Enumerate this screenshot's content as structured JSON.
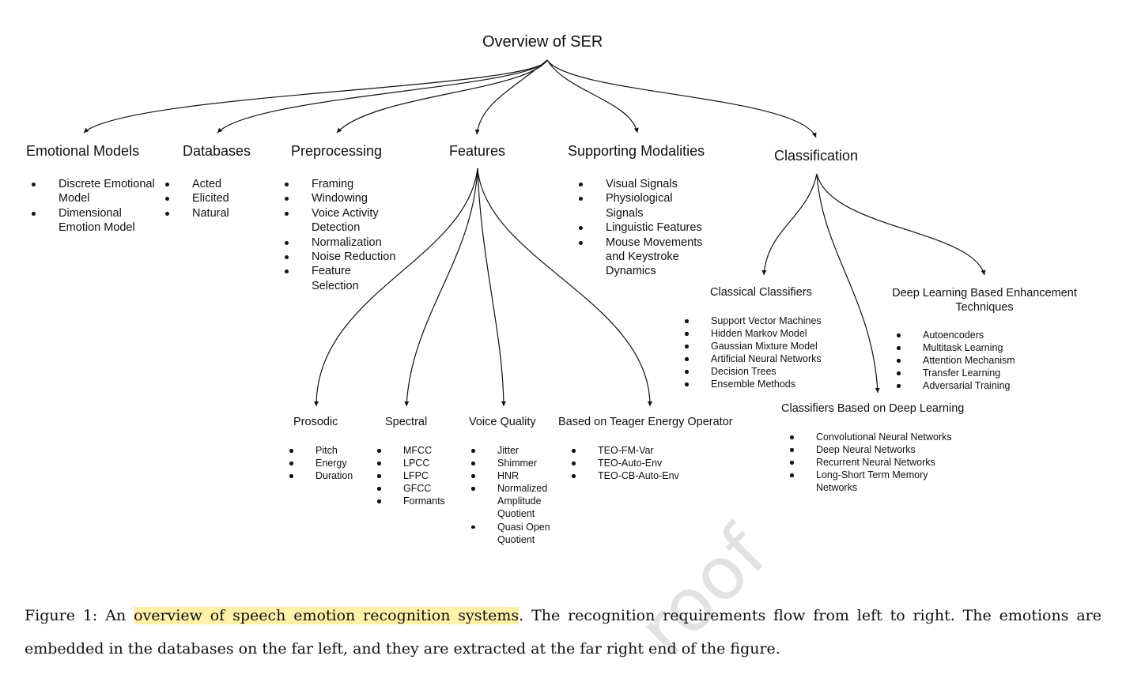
{
  "diagram": {
    "title": "Overview of SER",
    "sections": [
      {
        "title": "Emotional Models",
        "items": [
          "Discrete Emotional Model",
          "Dimensional Emotion Model"
        ]
      },
      {
        "title": "Databases",
        "items": [
          "Acted",
          "Elicited",
          "Natural"
        ]
      },
      {
        "title": "Preprocessing",
        "items": [
          "Framing",
          "Windowing",
          "Voice Activity Detection",
          "Normalization",
          "Noise Reduction",
          "Feature Selection"
        ]
      },
      {
        "title": "Features"
      },
      {
        "title": "Supporting Modalities",
        "items": [
          "Visual Signals",
          "Physiological Signals",
          "Linguistic Features",
          "Mouse Movements and Keystroke Dynamics"
        ]
      },
      {
        "title": "Classification"
      }
    ],
    "feature_groups": [
      {
        "title": "Prosodic",
        "items": [
          "Pitch",
          "Energy",
          "Duration"
        ]
      },
      {
        "title": "Spectral",
        "items": [
          "MFCC",
          "LPCC",
          "LFPC",
          "GFCC",
          "Formants"
        ]
      },
      {
        "title": "Voice Quality",
        "items": [
          "Jitter",
          "Shimmer",
          "HNR",
          "Normalized Amplitude Quotient",
          "Quasi Open Quotient"
        ]
      },
      {
        "title": "Based on Teager Energy Operator",
        "items": [
          "TEO-FM-Var",
          "TEO-Auto-Env",
          "TEO-CB-Auto-Env"
        ]
      }
    ],
    "classifier_groups": [
      {
        "title": "Classical Classifiers",
        "items": [
          "Support Vector Machines",
          "Hidden Markov Model",
          "Gaussian Mixture Model",
          "Artificial Neural Networks",
          "Decision Trees",
          "Ensemble Methods"
        ]
      },
      {
        "title": "Deep Learning Based Enhancement Techniques",
        "items": [
          "Autoencoders",
          "Multitask Learning",
          "Attention Mechanism",
          "Transfer Learning",
          "Adversarial Training"
        ]
      },
      {
        "title": "Classifiers Based on Deep Learning",
        "items": [
          "Convolutional Neural Networks",
          "Deep Neural Networks",
          "Recurrent Neural Networks",
          "Long-Short Term Memory Networks"
        ]
      }
    ]
  },
  "caption": {
    "label": "Figure 1:",
    "pre": "An",
    "highlight": "overview of speech emotion recognition systems",
    "rest": ". The recognition requirements flow from left to right. The emotions are embedded in the databases on the far left, and they are extracted at the far right end of the figure."
  },
  "watermark": "roof",
  "colors": {
    "text": "#111111",
    "highlight": "#fff1a8",
    "watermark": "#cfcfcf"
  }
}
